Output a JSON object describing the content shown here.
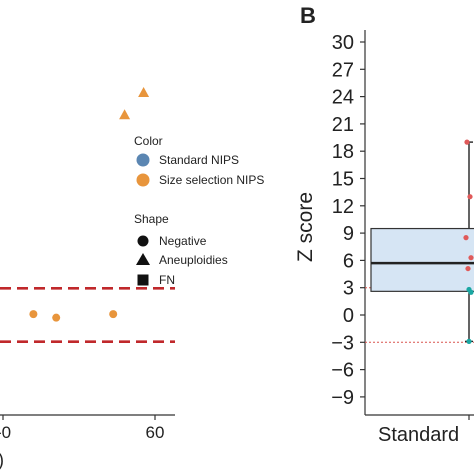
{
  "panel_b_label": "B",
  "partial_texts": {
    "x_tick_fragment": "-0",
    "x_label_fragment": ")"
  },
  "legend": {
    "color_title": "Color",
    "color_items": [
      {
        "label": "Standard NIPS",
        "color": "#5b86b2"
      },
      {
        "label": "Size selection NIPS",
        "color": "#e8953c"
      }
    ],
    "shape_title": "Shape",
    "shape_items": [
      {
        "label": "Negative",
        "shape": "circle"
      },
      {
        "label": "Aneuploidies",
        "shape": "triangle"
      },
      {
        "label": "FN",
        "shape": "square"
      }
    ]
  },
  "chart_data": [
    {
      "type": "scatter",
      "panel": "A (partial)",
      "x_ticks": [
        60
      ],
      "y_thresholds": [
        3,
        -3
      ],
      "threshold_color": "#c0282b",
      "series": [
        {
          "group": "Size selection NIPS",
          "shape": "circle",
          "color": "#e8953c",
          "points": [
            {
              "x": 28,
              "y": 0.1
            },
            {
              "x": 34,
              "y": -0.3
            },
            {
              "x": 49,
              "y": 0.1
            }
          ]
        },
        {
          "group": "Size selection NIPS",
          "shape": "triangle",
          "color": "#e8953c",
          "points": [
            {
              "x": 52,
              "y": 22.5
            },
            {
              "x": 57,
              "y": 25
            }
          ]
        }
      ]
    },
    {
      "type": "box",
      "panel": "B",
      "ylabel": "Z score",
      "categories": [
        "Standard"
      ],
      "ylim": [
        -10.5,
        31.5
      ],
      "y_ticks": [
        30,
        27,
        24,
        21,
        18,
        15,
        12,
        9,
        6,
        3,
        0,
        -3,
        -6,
        -9
      ],
      "box": {
        "q1": 2.6,
        "median": 5.7,
        "q3": 9.5,
        "whisker_low": -2.9,
        "whisker_high": 19
      },
      "box_fill": "#d6e5f4",
      "thresholds": [
        3,
        -3
      ],
      "threshold_color": "#d9534f",
      "points": [
        {
          "y": 19,
          "color": "#e05a5a"
        },
        {
          "y": 13,
          "color": "#e05a5a"
        },
        {
          "y": 8.5,
          "color": "#e05a5a"
        },
        {
          "y": 6.3,
          "color": "#e05a5a"
        },
        {
          "y": 5.1,
          "color": "#e05a5a"
        },
        {
          "y": 2.8,
          "color": "#1aa7a2"
        },
        {
          "y": 2.5,
          "color": "#1aa7a2"
        },
        {
          "y": -2.9,
          "color": "#1aa7a2"
        }
      ]
    }
  ]
}
